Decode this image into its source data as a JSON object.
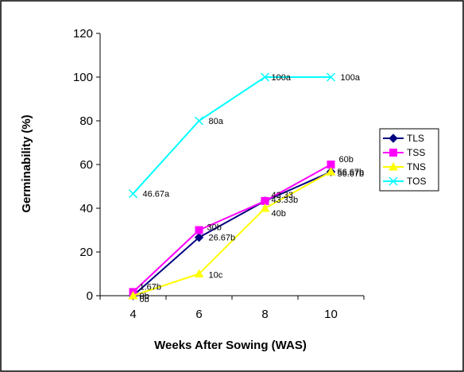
{
  "chart_data": {
    "type": "line",
    "title": "",
    "xlabel": "Weeks After Sowing (WAS)",
    "ylabel": "Germinability (%)",
    "categories": [
      "4",
      "6",
      "8",
      "10"
    ],
    "ylim": [
      0,
      120
    ],
    "yticks": [
      "0",
      "20",
      "40",
      "60",
      "80",
      "100",
      "120"
    ],
    "grid": false,
    "legend_position": "right",
    "series": [
      {
        "name": "TLS",
        "color": "#000080",
        "marker": "diamond",
        "values": [
          0,
          26.67,
          43.33,
          56.67
        ],
        "labels": [
          "0b",
          "26.67b",
          "43.33b",
          "56.67b"
        ]
      },
      {
        "name": "TSS",
        "color": "#ff00ff",
        "marker": "square",
        "values": [
          1.67,
          30,
          43.33,
          60
        ],
        "labels": [
          "1.67b",
          "30b",
          "43.33",
          "60b"
        ]
      },
      {
        "name": "TNS",
        "color": "#ffff00",
        "marker": "triangle",
        "values": [
          0,
          10,
          40,
          56.67
        ],
        "labels": [
          "0b",
          "10c",
          "40b",
          "56.67b"
        ]
      },
      {
        "name": "TOS",
        "color": "#00ffff",
        "marker": "x",
        "values": [
          46.67,
          80,
          100,
          100
        ],
        "labels": [
          "46.67a",
          "80a",
          "100a",
          "100a"
        ]
      }
    ]
  }
}
